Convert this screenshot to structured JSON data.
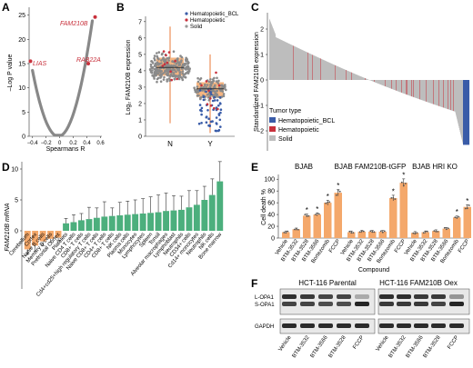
{
  "colors": {
    "orange": "#f4a86b",
    "orange_dark": "#e8793a",
    "green": "#4caf7d",
    "red": "#c8313c",
    "blue": "#3a5ca8",
    "gray": "#bdbdbd",
    "points_gray": "#8a8a8a"
  },
  "panel_a": {
    "letter": "A",
    "ylabel": "–Log P value",
    "xlabel": "Spearmans R",
    "xticks": [
      "−0.4",
      "−0.2",
      "0",
      "0.2",
      "0.4",
      "0.6"
    ],
    "yticks": [
      "0",
      "5",
      "10",
      "15",
      "20",
      "25"
    ],
    "labels": {
      "fam210b": "FAM210B",
      "lias": "LIAS",
      "rab22a": "RAB22A"
    },
    "chart_data": {
      "type": "scatter",
      "xlabel": "Spearmans R",
      "ylabel": "–Log P value",
      "xlim": [
        -0.4,
        0.6
      ],
      "ylim": [
        0,
        25
      ],
      "highlighted": [
        {
          "name": "FAM210B",
          "x": 0.52,
          "y": 24.6
        },
        {
          "name": "LIAS",
          "x": -0.43,
          "y": 15.5
        },
        {
          "name": "RAB22A",
          "x": 0.42,
          "y": 15.0
        }
      ]
    }
  },
  "panel_b": {
    "letter": "B",
    "ylabel": "Log₂ FAM210B expression",
    "yticks": [
      "0",
      "1",
      "2",
      "3",
      "4",
      "5",
      "6",
      "7"
    ],
    "categories": [
      "N",
      "Y"
    ],
    "legend": [
      "Hematopoietic_BCL",
      "Hematopoietic",
      "Solid"
    ],
    "chart_data": {
      "type": "box",
      "categories": [
        "N",
        "Y"
      ],
      "ylim": [
        0,
        7
      ],
      "boxes": [
        {
          "name": "N",
          "min": 0.8,
          "q1": 3.7,
          "median": 4.2,
          "q3": 4.8,
          "max": 6.7
        },
        {
          "name": "Y",
          "min": 0.2,
          "q1": 2.4,
          "median": 2.9,
          "q3": 3.3,
          "max": 5.0
        }
      ]
    }
  },
  "panel_c": {
    "letter": "C",
    "ylabel": "Standardized FAM210B expression",
    "yticks": [
      "2",
      "1",
      "0",
      "−1",
      "−2"
    ],
    "legend_title": "Tumor type",
    "legend": [
      "Hematopoietic_BCL",
      "Hematopoietic",
      "Solid"
    ],
    "chart_data": {
      "type": "bar",
      "ylim": [
        -2.6,
        2.6
      ],
      "note": "waterfall of ~1000 cell lines sorted by expression"
    }
  },
  "panel_d": {
    "letter": "D",
    "ylabel": "FAM210B mRNA",
    "yticks": [
      "0",
      "5",
      "10"
    ],
    "chart_data": {
      "type": "bar",
      "ylim": [
        -5,
        11
      ],
      "categories": [
        "Cerebellum",
        "Cortex",
        "Naive B cells",
        "Memory B cells",
        "Prefrontal Cortex",
        "Platelets",
        "Naive CD4 T cells",
        "CD8+ T cells",
        "Cd4+cd25+high regulatory T cells",
        "Naive CD8+ T cells",
        "CD4+ T cells",
        "CD8+ T cells",
        "NK cells",
        "Plasma cells",
        "Monocytes",
        "Lymphocytes",
        "Spleen",
        "Tonsil",
        "Alveolar macrophages",
        "Lymphoblast",
        "Neutrophils",
        "CD34+ cells",
        "Cd14+ monocytes",
        "Neutrophils",
        "NK cells",
        "Bone marrow"
      ],
      "values": [
        -3.0,
        -2.4,
        -1.7,
        -1.3,
        -1.1,
        1.2,
        1.4,
        1.7,
        1.9,
        2.1,
        2.3,
        2.4,
        2.5,
        2.6,
        2.7,
        2.8,
        2.9,
        3.0,
        3.2,
        3.3,
        3.4,
        3.8,
        4.2,
        5.0,
        5.8,
        8.0
      ],
      "errors": [
        0.8,
        0.9,
        0.7,
        0.6,
        0.5,
        0.8,
        1.2,
        1.1,
        1.9,
        1.6,
        2.4,
        1.3,
        2.1,
        2.2,
        2.3,
        2.4,
        2.6,
        2.8,
        2.9,
        2.4,
        2.2,
        2.7,
        2.3,
        2.2,
        2.6,
        3.2
      ]
    }
  },
  "panel_e": {
    "letter": "E",
    "ylabel": "Cell death %",
    "xlabel": "Compound",
    "yticks": [
      "0",
      "20",
      "40",
      "60",
      "80",
      "100"
    ],
    "groups": [
      "BJAB",
      "BJAB FAM210B-tGFP",
      "BJAB HRI KO"
    ],
    "compounds": [
      "Vehicle",
      "BTM-3532",
      "BTM-3528",
      "BTM-3566",
      "Bortezomib",
      "FCCP"
    ],
    "chart_data": {
      "type": "bar",
      "ylim": [
        0,
        100
      ],
      "series": [
        {
          "name": "BJAB",
          "values": [
            10,
            15,
            38,
            40,
            60,
            77
          ],
          "significant": [
            false,
            false,
            true,
            true,
            true,
            true
          ]
        },
        {
          "name": "BJAB FAM210B-tGFP",
          "values": [
            10,
            11,
            11,
            11,
            68,
            94
          ],
          "significant": [
            false,
            false,
            false,
            false,
            true,
            true
          ]
        },
        {
          "name": "BJAB HRI KO",
          "values": [
            9,
            10,
            12,
            16,
            35,
            53
          ],
          "significant": [
            false,
            false,
            false,
            false,
            true,
            true
          ]
        }
      ]
    }
  },
  "panel_f": {
    "letter": "F",
    "title_left": "HCT-116 Parental",
    "title_right": "HCT-116 FAM210B Oex",
    "row_labels": [
      "L-OPA1",
      "S-OPA1",
      "GAPDH"
    ],
    "lanes": [
      "Vehicle",
      "BTM-3532",
      "BTM-3566",
      "BTM-3528",
      "FCCP"
    ]
  }
}
